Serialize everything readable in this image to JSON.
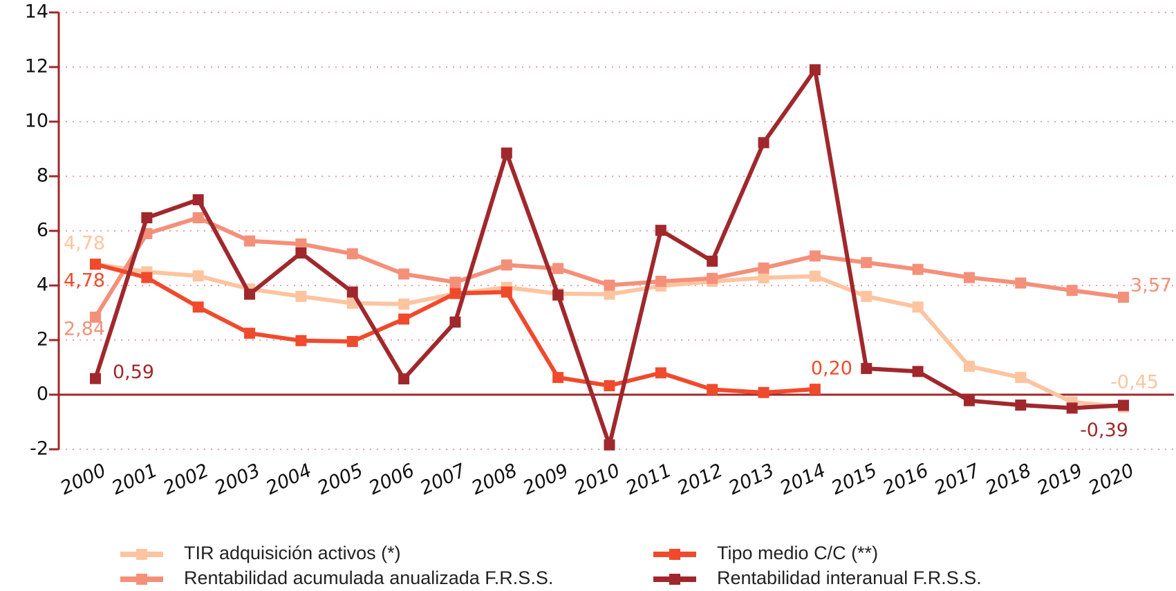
{
  "chart_data": {
    "type": "line",
    "categories": [
      "2000",
      "2001",
      "2002",
      "2003",
      "2004",
      "2005",
      "2006",
      "2007",
      "2008",
      "2009",
      "2010",
      "2011",
      "2012",
      "2013",
      "2014",
      "2015",
      "2016",
      "2017",
      "2018",
      "2019",
      "2020"
    ],
    "ylim": [
      -2,
      14
    ],
    "yticks": [
      -2,
      0,
      2,
      4,
      6,
      8,
      10,
      12,
      14
    ],
    "grid": true,
    "legend": "bottom",
    "series": [
      {
        "name": "TIR adquisición activos (*)",
        "color": "#fdc4a0",
        "values": [
          4.78,
          4.5,
          4.35,
          3.87,
          3.6,
          3.35,
          3.32,
          3.7,
          3.93,
          3.7,
          3.68,
          3.98,
          4.15,
          4.28,
          4.34,
          3.6,
          3.21,
          1.04,
          0.63,
          -0.27,
          -0.45
        ],
        "value_labels": [
          "4,78",
          null,
          null,
          null,
          null,
          null,
          null,
          null,
          null,
          null,
          null,
          null,
          null,
          null,
          null,
          null,
          null,
          null,
          null,
          null,
          "-0,45"
        ]
      },
      {
        "name": "Rentabilidad acumulada anualizada F.R.S.S.",
        "color": "#f4907a",
        "values": [
          2.84,
          5.9,
          6.48,
          5.63,
          5.52,
          5.16,
          4.42,
          4.12,
          4.75,
          4.62,
          4.01,
          4.15,
          4.26,
          4.64,
          5.08,
          4.84,
          4.59,
          4.29,
          4.09,
          3.82,
          3.57
        ],
        "value_labels": [
          "2,84",
          null,
          null,
          null,
          null,
          null,
          null,
          null,
          null,
          null,
          null,
          null,
          null,
          null,
          null,
          null,
          null,
          null,
          null,
          null,
          "3,57"
        ]
      },
      {
        "name": "Tipo medio C/C (**)",
        "color": "#f04a2c",
        "values": [
          4.78,
          4.29,
          3.21,
          2.25,
          1.98,
          1.95,
          2.77,
          3.71,
          3.76,
          0.63,
          0.33,
          0.8,
          0.19,
          0.08,
          0.2,
          null,
          null,
          null,
          null,
          null,
          null
        ],
        "value_labels": [
          "4,78",
          null,
          null,
          null,
          null,
          null,
          null,
          null,
          null,
          null,
          null,
          null,
          null,
          null,
          "0,20",
          null,
          null,
          null,
          null,
          null,
          null
        ]
      },
      {
        "name": "Rentabilidad interanual F.R.S.S.",
        "color": "#a0282c",
        "values": [
          0.59,
          6.48,
          7.14,
          3.68,
          5.19,
          3.76,
          0.58,
          2.66,
          8.85,
          3.65,
          -1.84,
          6.02,
          4.89,
          9.23,
          11.9,
          0.96,
          0.85,
          -0.22,
          -0.38,
          -0.49,
          -0.39
        ],
        "value_labels": [
          "0,59",
          null,
          null,
          null,
          null,
          null,
          null,
          null,
          null,
          null,
          null,
          null,
          null,
          null,
          null,
          null,
          null,
          null,
          null,
          null,
          "-0,39"
        ]
      }
    ]
  }
}
